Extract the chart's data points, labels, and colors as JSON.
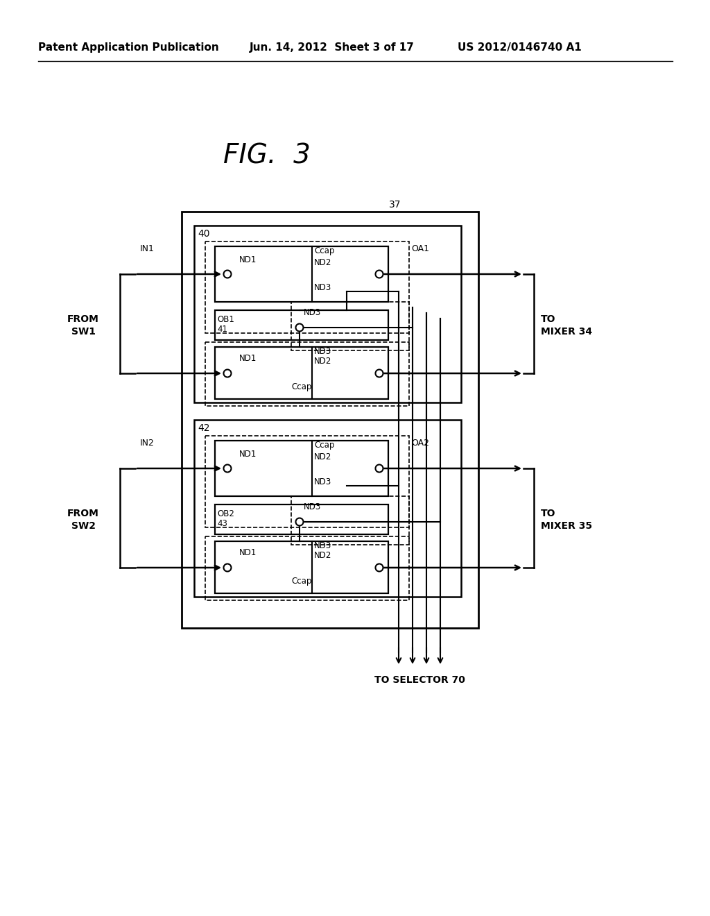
{
  "header_left": "Patent Application Publication",
  "header_center": "Jun. 14, 2012  Sheet 3 of 17",
  "header_right": "US 2012/0146740 A1",
  "title": "FIG.  3",
  "bg_color": "#ffffff",
  "text_color": "#000000"
}
